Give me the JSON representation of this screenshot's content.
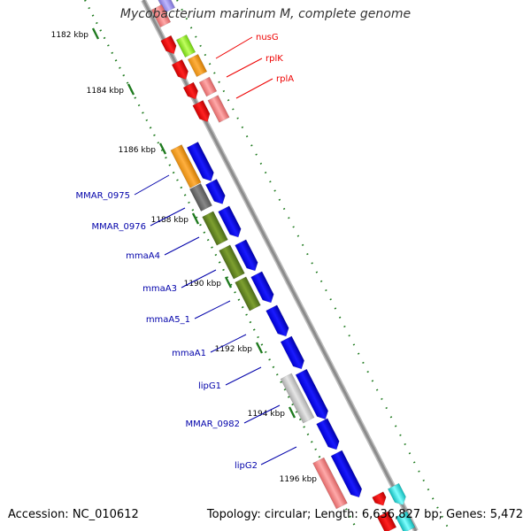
{
  "map": {
    "title": "Mycobacterium marinum M, complete genome",
    "accession": "Accession: NC_010612",
    "summary": "Topology: circular; Length: 6,636,827 bp; Genes: 5,472"
  },
  "colors": {
    "backbone": "#8c8c8c",
    "tick_dots": "#1e7a1e",
    "forward_gene": "#0000ee",
    "label_red": "#ee0000",
    "label_blue": "#0000aa",
    "orange": "#f4a01e",
    "olive": "#6b8e23",
    "gray": "#666666",
    "lightgray": "#c8c8c8",
    "pink": "#f08080",
    "red": "#ee1111",
    "lime": "#90ee20",
    "cyan": "#22d8d8",
    "lavender": "#9b8ee8"
  },
  "ticks": [
    {
      "label": "1182 kbp"
    },
    {
      "label": "1184 kbp"
    },
    {
      "label": "1186 kbp"
    },
    {
      "label": "1188 kbp"
    },
    {
      "label": "1190 kbp"
    },
    {
      "label": "1192 kbp"
    },
    {
      "label": "1194 kbp"
    },
    {
      "label": "1196 kbp"
    }
  ],
  "labels": [
    {
      "text": "nusG",
      "color": "red"
    },
    {
      "text": "rplK",
      "color": "red"
    },
    {
      "text": "rplA",
      "color": "red"
    },
    {
      "text": "MMAR_0975",
      "color": "blue"
    },
    {
      "text": "MMAR_0976",
      "color": "blue"
    },
    {
      "text": "mmaA4",
      "color": "blue"
    },
    {
      "text": "mmaA3",
      "color": "blue"
    },
    {
      "text": "mmaA5_1",
      "color": "blue"
    },
    {
      "text": "mmaA1",
      "color": "blue"
    },
    {
      "text": "lipG1",
      "color": "blue"
    },
    {
      "text": "MMAR_0982",
      "color": "blue"
    },
    {
      "text": "lipG2",
      "color": "blue"
    }
  ]
}
